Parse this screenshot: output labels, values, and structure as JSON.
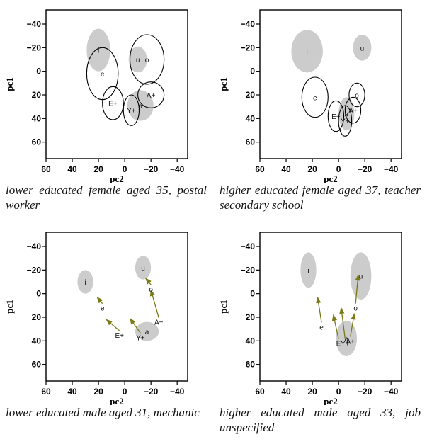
{
  "chart_data": [
    {
      "type": "scatter",
      "title": "",
      "xlabel": "pc2",
      "ylabel": "pc1",
      "x_ticks": [
        "60",
        "40",
        "20",
        "0",
        "−20",
        "−40"
      ],
      "y_ticks": [
        "−40",
        "−20",
        "0",
        "20",
        "40",
        "60"
      ],
      "xlim": [
        60,
        -48
      ],
      "ylim": [
        -52,
        74
      ],
      "caption": "lower educated female aged 35, postal worker",
      "ellipses": [
        {
          "label": "i",
          "x": 20,
          "y": -18,
          "rx": 9,
          "ry": 18,
          "style": "filled"
        },
        {
          "label": "u",
          "x": -10,
          "y": -10,
          "rx": 7,
          "ry": 11,
          "style": "filled"
        },
        {
          "label": "o",
          "x": -17,
          "y": -10,
          "rx": 13,
          "ry": 21,
          "style": "outline"
        },
        {
          "label": "e",
          "x": 17,
          "y": 2,
          "rx": 12,
          "ry": 22,
          "style": "outline"
        },
        {
          "label": "A+",
          "x": -20,
          "y": 20,
          "rx": 10,
          "ry": 11,
          "style": "outline"
        },
        {
          "label": "a",
          "x": -12,
          "y": 29,
          "rx": 10,
          "ry": 13,
          "style": "filled"
        },
        {
          "label": "E+",
          "x": 9,
          "y": 27,
          "rx": 8,
          "ry": 14,
          "style": "outline"
        },
        {
          "label": "Y+",
          "x": -5,
          "y": 33,
          "rx": 6,
          "ry": 13,
          "style": "outline"
        }
      ],
      "arrows": []
    },
    {
      "type": "scatter",
      "title": "",
      "xlabel": "pc2",
      "ylabel": "pc1",
      "x_ticks": [
        "60",
        "40",
        "20",
        "0",
        "−20",
        "−40"
      ],
      "y_ticks": [
        "−40",
        "−20",
        "0",
        "20",
        "40",
        "60"
      ],
      "xlim": [
        60,
        -48
      ],
      "ylim": [
        -52,
        74
      ],
      "caption": "higher educated female aged 37, teacher secondary school",
      "ellipses": [
        {
          "label": "i",
          "x": 24,
          "y": -17,
          "rx": 12,
          "ry": 18,
          "style": "filled"
        },
        {
          "label": "u",
          "x": -18,
          "y": -20,
          "rx": 7,
          "ry": 11,
          "style": "filled"
        },
        {
          "label": "e",
          "x": 18,
          "y": 22,
          "rx": 10,
          "ry": 17,
          "style": "outline"
        },
        {
          "label": "o",
          "x": -14,
          "y": 20,
          "rx": 6,
          "ry": 10,
          "style": "outline"
        },
        {
          "label": "A+",
          "x": -11,
          "y": 33,
          "rx": 6,
          "ry": 11,
          "style": "outline"
        },
        {
          "label": "a",
          "x": -6,
          "y": 36,
          "rx": 6,
          "ry": 14,
          "style": "filled"
        },
        {
          "label": "E+",
          "x": 2,
          "y": 38,
          "rx": 6,
          "ry": 13,
          "style": "outline"
        },
        {
          "label": "Y+",
          "x": -5,
          "y": 42,
          "rx": 5,
          "ry": 13,
          "style": "outline"
        }
      ],
      "arrows": []
    },
    {
      "type": "scatter",
      "title": "",
      "xlabel": "pc2",
      "ylabel": "pc1",
      "x_ticks": [
        "60",
        "40",
        "20",
        "0",
        "−20",
        "−40"
      ],
      "y_ticks": [
        "−40",
        "−20",
        "0",
        "20",
        "40",
        "60"
      ],
      "xlim": [
        60,
        -48
      ],
      "ylim": [
        -52,
        74
      ],
      "caption": "lower educated male aged 31, mechanic",
      "ellipses": [
        {
          "label": "i",
          "x": 30,
          "y": -10,
          "rx": 6,
          "ry": 10,
          "style": "filled"
        },
        {
          "label": "u",
          "x": -14,
          "y": -22,
          "rx": 6,
          "ry": 10,
          "style": "filled"
        },
        {
          "label": "a",
          "x": -17,
          "y": 32,
          "rx": 9,
          "ry": 8,
          "style": "filled"
        }
      ],
      "labels": [
        {
          "label": "o",
          "x": -20,
          "y": -4
        },
        {
          "label": "e",
          "x": 17,
          "y": 12
        },
        {
          "label": "A+",
          "x": -26,
          "y": 24
        },
        {
          "label": "E+",
          "x": 4,
          "y": 35
        },
        {
          "label": "Y+",
          "x": -12,
          "y": 37
        }
      ],
      "arrows": [
        {
          "from": "o",
          "x1": -20,
          "y1": -4,
          "x2": -16,
          "y2": -13
        },
        {
          "from": "e",
          "x1": 17,
          "y1": 12,
          "x2": 21,
          "y2": 3
        },
        {
          "from": "A+",
          "x1": -26,
          "y1": 24,
          "x2": -20,
          "y2": -3
        },
        {
          "from": "E+",
          "x1": 4,
          "y1": 35,
          "x2": 14,
          "y2": 22
        },
        {
          "from": "Y+",
          "x1": -12,
          "y1": 37,
          "x2": -4,
          "y2": 21
        }
      ]
    },
    {
      "type": "scatter",
      "title": "",
      "xlabel": "pc2",
      "ylabel": "pc1",
      "x_ticks": [
        "60",
        "40",
        "20",
        "0",
        "−20",
        "−40"
      ],
      "y_ticks": [
        "−40",
        "−20",
        "0",
        "20",
        "40",
        "60"
      ],
      "xlim": [
        60,
        -48
      ],
      "ylim": [
        -52,
        74
      ],
      "caption": "higher educated male aged 33, job unspecified",
      "ellipses": [
        {
          "label": "i",
          "x": 23,
          "y": -20,
          "rx": 6,
          "ry": 15,
          "style": "filled"
        },
        {
          "label": "u",
          "x": -17,
          "y": -15,
          "rx": 8,
          "ry": 20,
          "style": "filled"
        },
        {
          "label": "a",
          "x": -6,
          "y": 38,
          "rx": 8,
          "ry": 15,
          "style": "filled"
        }
      ],
      "labels": [
        {
          "label": "o",
          "x": -13,
          "y": 12
        },
        {
          "label": "e",
          "x": 13,
          "y": 28
        },
        {
          "label": "A+",
          "x": -9,
          "y": 40
        },
        {
          "label": "E",
          "x": 0,
          "y": 42
        },
        {
          "label": "Y+",
          "x": -5,
          "y": 42
        }
      ],
      "arrows": [
        {
          "from": "o",
          "x1": -13,
          "y1": 12,
          "x2": -15,
          "y2": -16
        },
        {
          "from": "e",
          "x1": 13,
          "y1": 28,
          "x2": 16,
          "y2": 3
        },
        {
          "from": "A+",
          "x1": -9,
          "y1": 40,
          "x2": -12,
          "y2": 17
        },
        {
          "from": "E",
          "x1": 0,
          "y1": 42,
          "x2": 4,
          "y2": 18
        },
        {
          "from": "Y+",
          "x1": -5,
          "y1": 42,
          "x2": -2,
          "y2": 12
        }
      ]
    }
  ],
  "colors": {
    "ellipse_fill": "#cccccc",
    "ellipse_stroke": "#000000",
    "arrow": "#7a7a16",
    "axis": "#000000"
  }
}
